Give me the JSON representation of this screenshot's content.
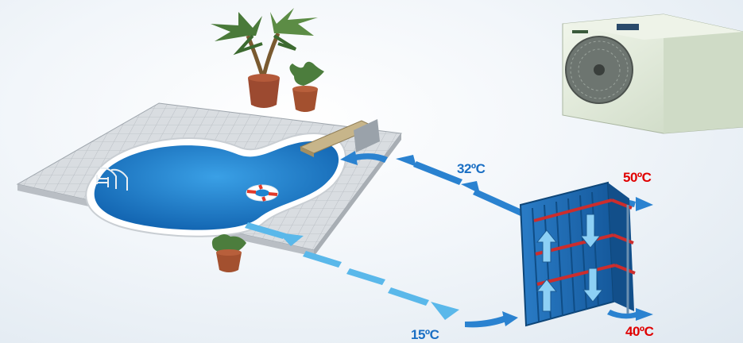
{
  "temperatures": {
    "pool_return": "32ºC",
    "hot_in": "50ºC",
    "pool_out": "15ºC",
    "hot_out": "40ºC"
  },
  "colors": {
    "cold_water": "#1a6fc4",
    "hot_water": "#e00000",
    "flow_arrow": "#5ab8ea",
    "pool_water": "#1e84cf",
    "heat_exchanger": "#1d6bb3"
  },
  "icons": [
    "palm-tree-icon",
    "potted-plant-icon",
    "heat-pump-icon",
    "pool-ladder-icon",
    "life-ring-icon",
    "diving-board-icon",
    "heat-exchanger-icon"
  ]
}
